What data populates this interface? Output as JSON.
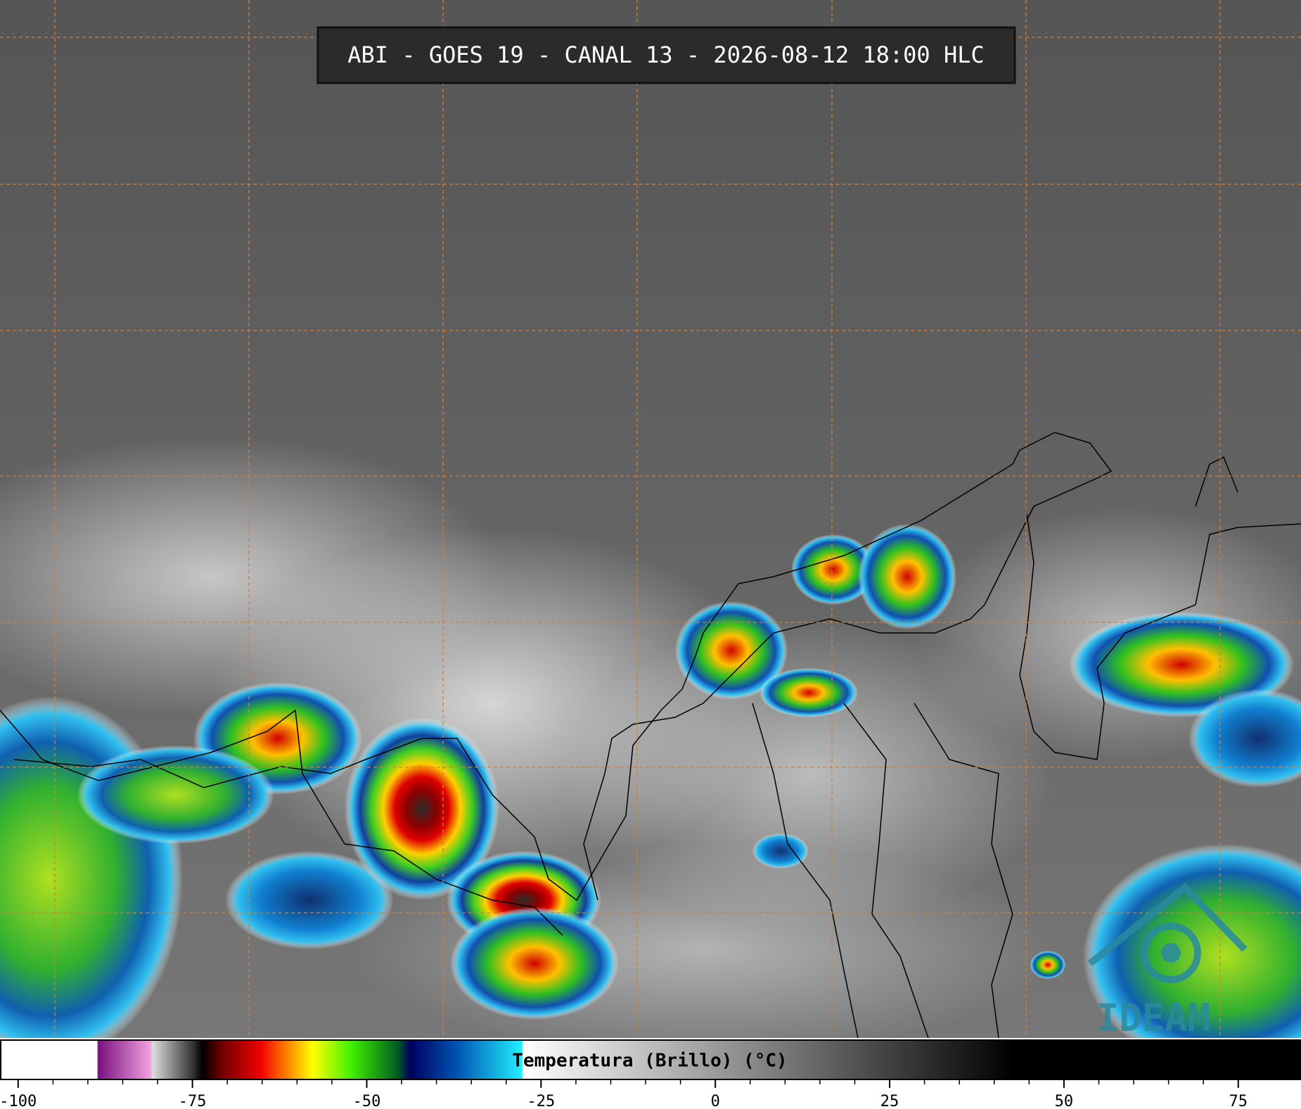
{
  "header": {
    "title": "ABI - GOES 19 - CANAL 13 - 2026-08-12 18:00 HLC"
  },
  "logo": {
    "text": "IDEAM"
  },
  "colorbar": {
    "label": "Temperatura (Brillo) (°C)",
    "lim": [
      -102.6,
      84
    ],
    "ticks": [
      -100,
      -75,
      -50,
      -25,
      0,
      25,
      50,
      75
    ]
  }
}
